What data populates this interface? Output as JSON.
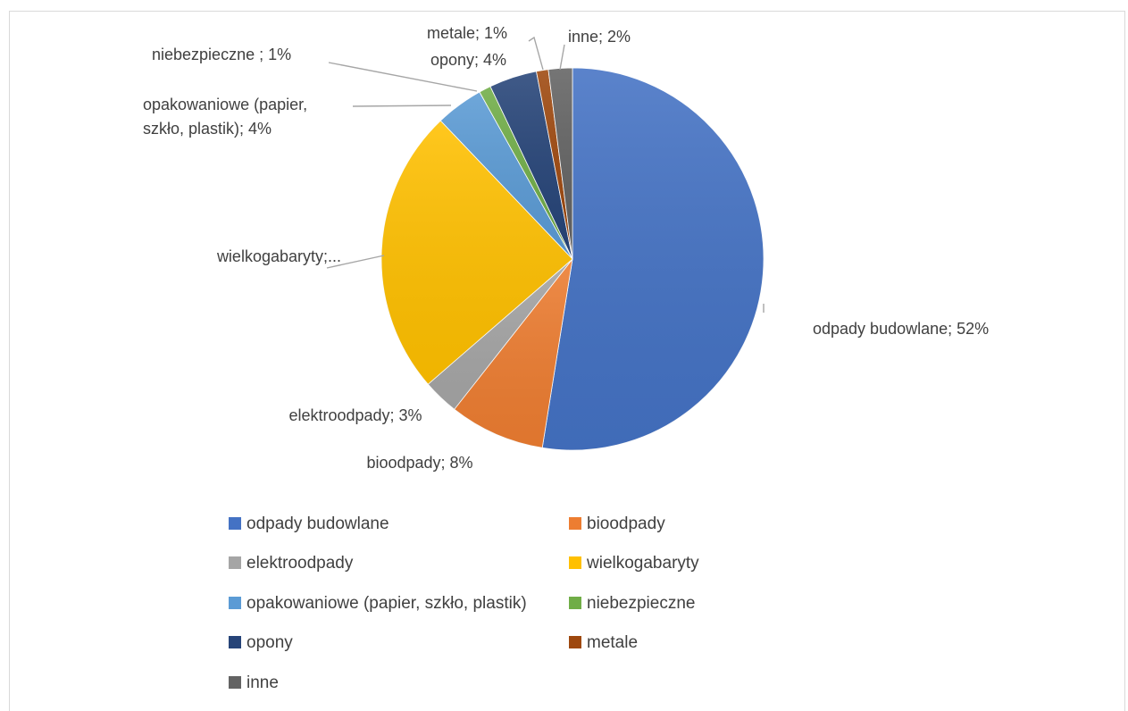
{
  "chart_data": {
    "type": "pie",
    "title": "",
    "slices": [
      {
        "name": "odpady budowlane",
        "value": 52,
        "color": "#4472C4",
        "label": "odpady budowlane; 52%"
      },
      {
        "name": "bioodpady",
        "value": 8,
        "color": "#ED7D31",
        "label": "bioodpady; 8%"
      },
      {
        "name": "elektroodpady",
        "value": 3,
        "color": "#A5A5A5",
        "label": "elektroodpady; 3%"
      },
      {
        "name": "wielkogabaryty",
        "value": 24,
        "color": "#FFC000",
        "label": "wielkogabaryty;..."
      },
      {
        "name": "opakowaniowe (papier, szkło, plastik)",
        "value": 4,
        "color": "#5B9BD5",
        "label_lines": [
          "opakowaniowe (papier,",
          "szkło, plastik); 4%"
        ]
      },
      {
        "name": "niebezpieczne",
        "value": 1,
        "color": "#70AD47",
        "label": "niebezpieczne ; 1%"
      },
      {
        "name": "opony",
        "value": 4,
        "color": "#264478",
        "label": "opony; 4%"
      },
      {
        "name": "metale",
        "value": 1,
        "color": "#9E480E",
        "label": "metale; 1%"
      },
      {
        "name": "inne",
        "value": 2,
        "color": "#636363",
        "label": "inne; 2%"
      }
    ],
    "legend_position": "bottom"
  }
}
